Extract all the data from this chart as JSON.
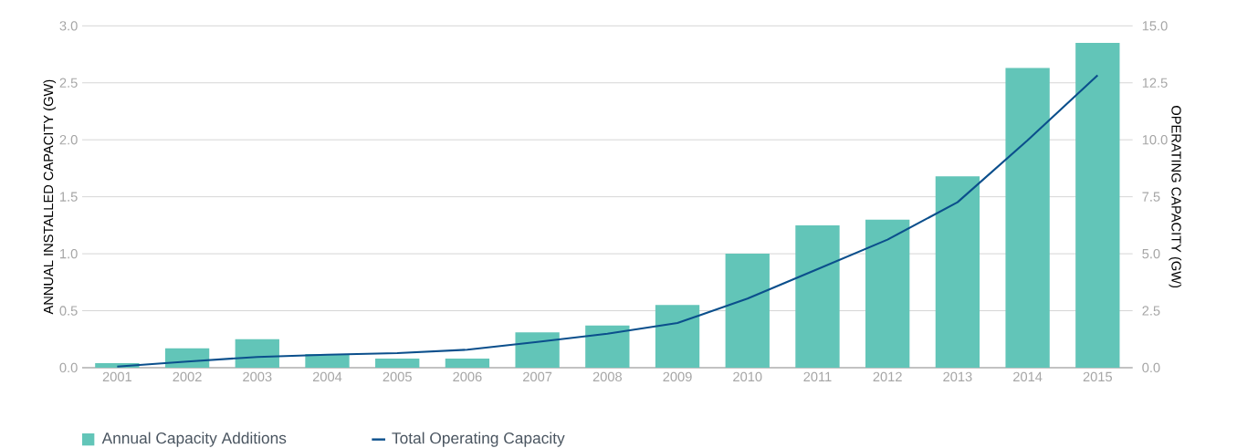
{
  "chart_data": {
    "type": "bar",
    "categories": [
      "2001",
      "2002",
      "2003",
      "2004",
      "2005",
      "2006",
      "2007",
      "2008",
      "2009",
      "2010",
      "2011",
      "2012",
      "2013",
      "2014",
      "2015"
    ],
    "series": [
      {
        "name": "Annual Capacity Additions",
        "color": "#62c5b8",
        "values": [
          0.04,
          0.17,
          0.25,
          0.12,
          0.08,
          0.08,
          0.31,
          0.37,
          0.55,
          1.0,
          1.25,
          1.3,
          1.68,
          2.63,
          2.85
        ]
      },
      {
        "name": "Total Operating Capacity",
        "type": "line",
        "axis": "y2",
        "color": "#0b4f8c",
        "values": [
          0.05,
          0.27,
          0.47,
          0.57,
          0.64,
          0.79,
          1.13,
          1.49,
          1.96,
          3.03,
          4.32,
          5.62,
          7.26,
          9.98,
          12.83
        ]
      }
    ],
    "ylabel": "ANNUAL INSTALLED CAPACITY (GW)",
    "y2label": "OPERATING CAPACITY (GW)",
    "ylim": [
      0,
      3
    ],
    "yticks": [
      {
        "value": 0,
        "label": "0.0"
      },
      0.5,
      {
        "value": 1,
        "label": "1.0"
      },
      1.5,
      {
        "value": 2,
        "label": "2.0"
      },
      2.5,
      {
        "value": 3,
        "label": "3.0"
      }
    ],
    "y2lim": [
      0,
      15
    ],
    "y2ticks": [
      {
        "value": 0,
        "label": "0.0"
      },
      2.5,
      {
        "value": 5,
        "label": "5.0"
      },
      7.5,
      {
        "value": 10,
        "label": "10.0"
      },
      12.5,
      {
        "value": 15,
        "label": "15.0"
      }
    ],
    "grid": "y",
    "legend": "bottom"
  }
}
